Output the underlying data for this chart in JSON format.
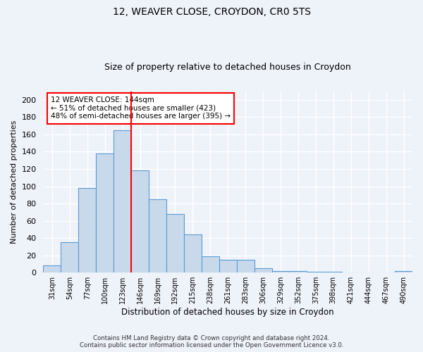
{
  "title1": "12, WEAVER CLOSE, CROYDON, CR0 5TS",
  "title2": "Size of property relative to detached houses in Croydon",
  "xlabel": "Distribution of detached houses by size in Croydon",
  "ylabel": "Number of detached properties",
  "bin_labels": [
    "31sqm",
    "54sqm",
    "77sqm",
    "100sqm",
    "123sqm",
    "146sqm",
    "169sqm",
    "192sqm",
    "215sqm",
    "238sqm",
    "261sqm",
    "283sqm",
    "306sqm",
    "329sqm",
    "352sqm",
    "375sqm",
    "398sqm",
    "421sqm",
    "444sqm",
    "467sqm",
    "490sqm"
  ],
  "bar_values": [
    8,
    35,
    98,
    138,
    165,
    118,
    85,
    68,
    44,
    19,
    15,
    15,
    5,
    2,
    2,
    1,
    1,
    0,
    0,
    0,
    2
  ],
  "bar_color": "#c9d9ec",
  "bar_edge_color": "#5b9bd5",
  "vline_color": "red",
  "annotation_text": "12 WEAVER CLOSE: 144sqm\n← 51% of detached houses are smaller (423)\n48% of semi-detached houses are larger (395) →",
  "annotation_box_color": "white",
  "annotation_box_edge_color": "red",
  "ylim": [
    0,
    210
  ],
  "yticks": [
    0,
    20,
    40,
    60,
    80,
    100,
    120,
    140,
    160,
    180,
    200
  ],
  "footer": "Contains HM Land Registry data © Crown copyright and database right 2024.\nContains public sector information licensed under the Open Government Licence v3.0.",
  "bg_color": "#eef2f9",
  "grid_color": "white"
}
